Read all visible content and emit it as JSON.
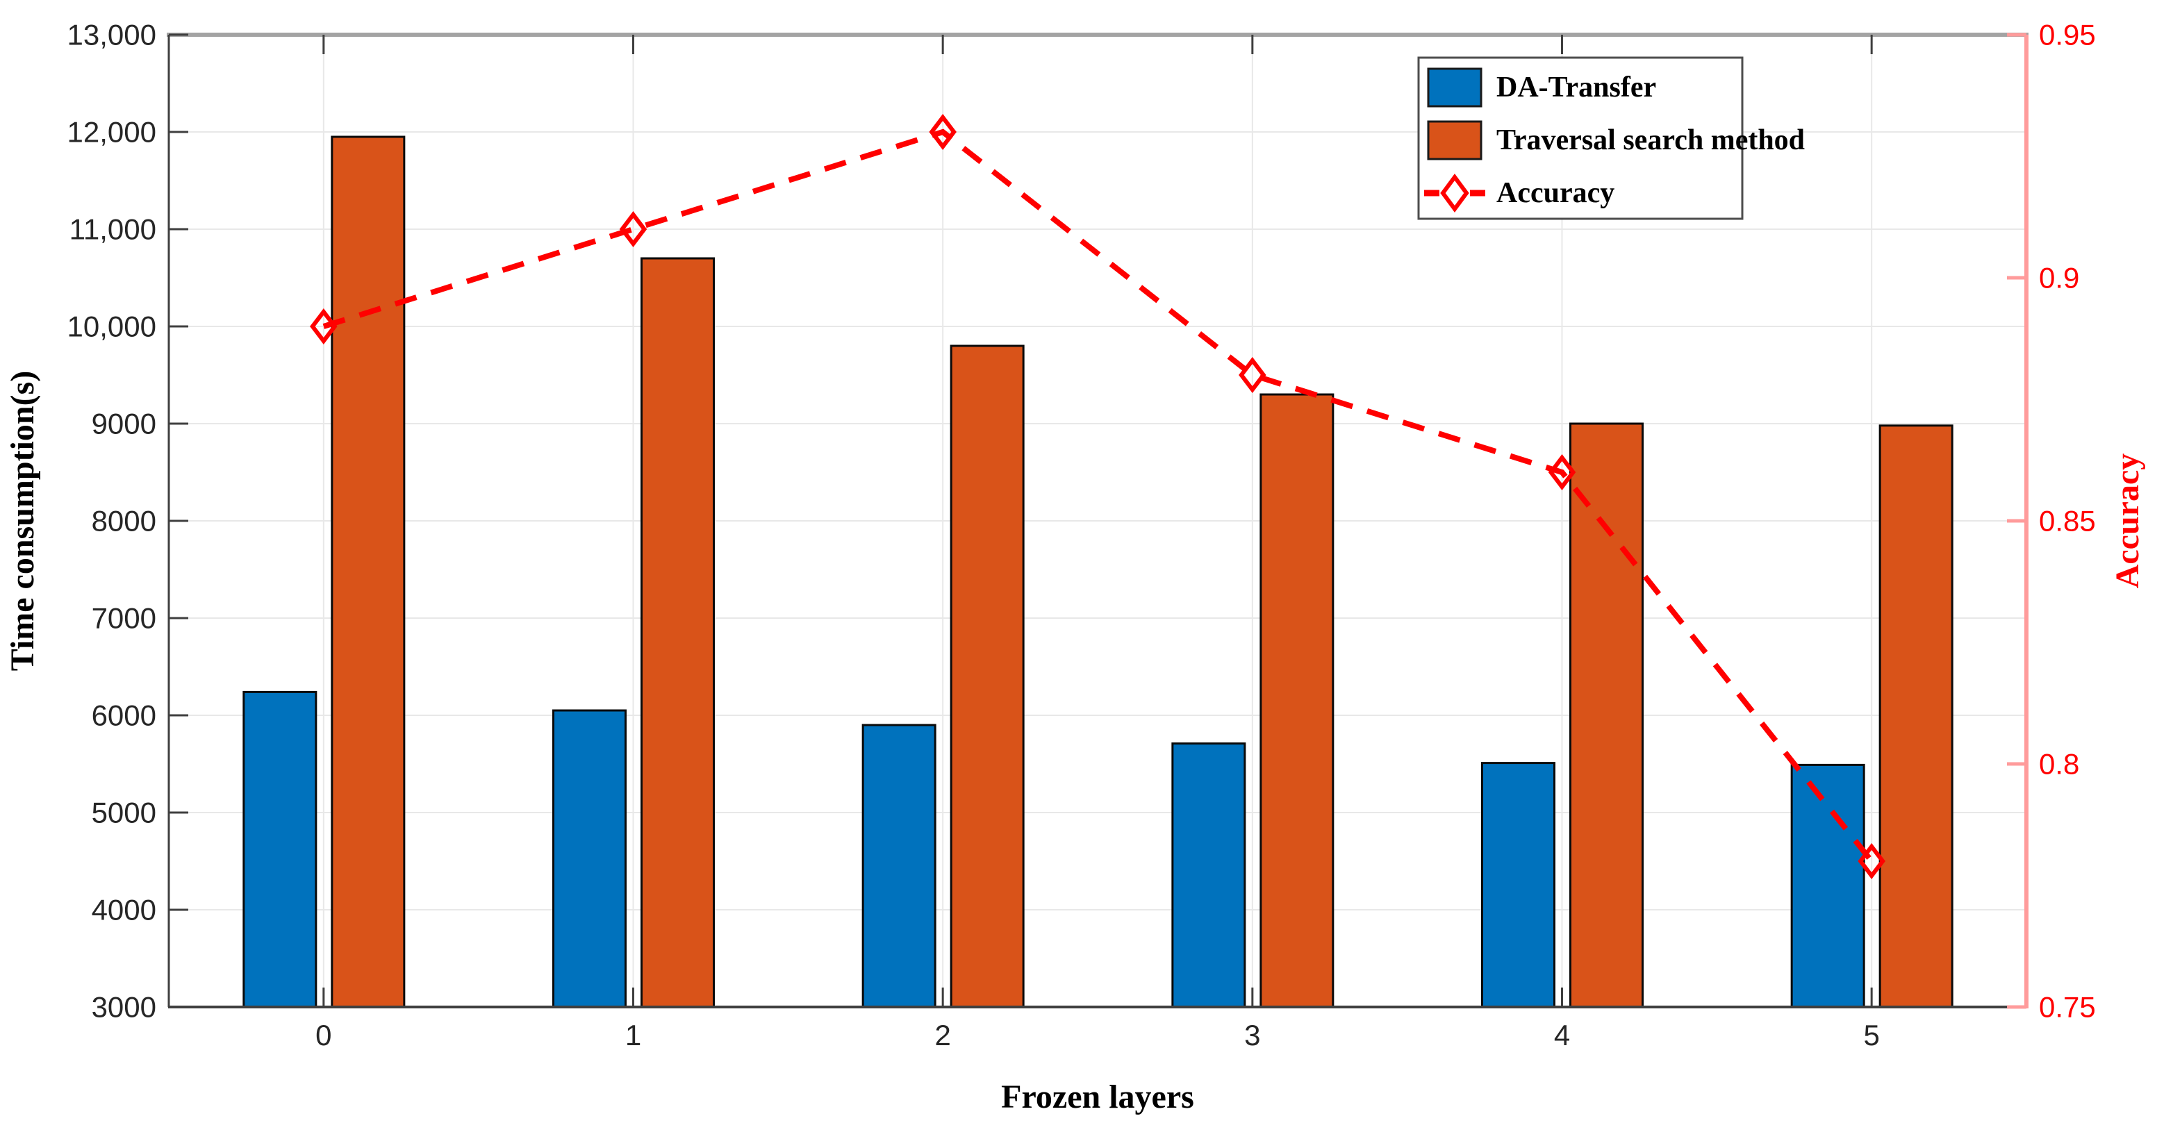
{
  "chart_data": {
    "type": "bar",
    "title": "",
    "categories": [
      "0",
      "1",
      "2",
      "3",
      "4",
      "5"
    ],
    "xlabel": "Frozen layers",
    "grid": true,
    "series": [
      {
        "name": "DA-Transfer",
        "type": "bar",
        "axis": "left",
        "color": "#0072BD",
        "values": [
          6240,
          6050,
          5900,
          5710,
          5510,
          5490
        ]
      },
      {
        "name": "Traversal search method",
        "type": "bar",
        "axis": "left",
        "color": "#D95319",
        "values": [
          11950,
          10700,
          9800,
          9300,
          9000,
          8980
        ]
      },
      {
        "name": "Accuracy",
        "type": "line",
        "axis": "right",
        "color": "#FF0000",
        "line_style": "dashed",
        "marker": "open-diamond",
        "values": [
          0.89,
          0.91,
          0.93,
          0.88,
          0.86,
          0.78
        ]
      }
    ],
    "left_axis": {
      "label": "Time consumption(s)",
      "min": 3000,
      "max": 13000,
      "tick_step": 1000,
      "tick_labels": [
        "3000",
        "4000",
        "5000",
        "6000",
        "7000",
        "8000",
        "9000",
        "10,000",
        "11,000",
        "12,000",
        "13,000"
      ],
      "color": "#262626"
    },
    "right_axis": {
      "label": "Accuracy",
      "min": 0.75,
      "max": 0.95,
      "tick_step": 0.05,
      "tick_labels": [
        "0.75",
        "0.8",
        "0.85",
        "0.9",
        "0.95"
      ],
      "color": "#FF0000"
    },
    "legend": {
      "position": "top-right",
      "entries": [
        "DA-Transfer",
        "Traversal search method",
        "Accuracy"
      ]
    },
    "style_colors": {
      "gridline": "#E8E8E8",
      "top_spine": "#A3A3A3",
      "left_spine": "#3F3F3F",
      "bottom_spine": "#3F3F3F",
      "right_spine": "#FF9B9B",
      "bar_outline": "#0A0A0A",
      "legend_border": "#4D4D4D",
      "background": "#FFFFFF"
    }
  }
}
